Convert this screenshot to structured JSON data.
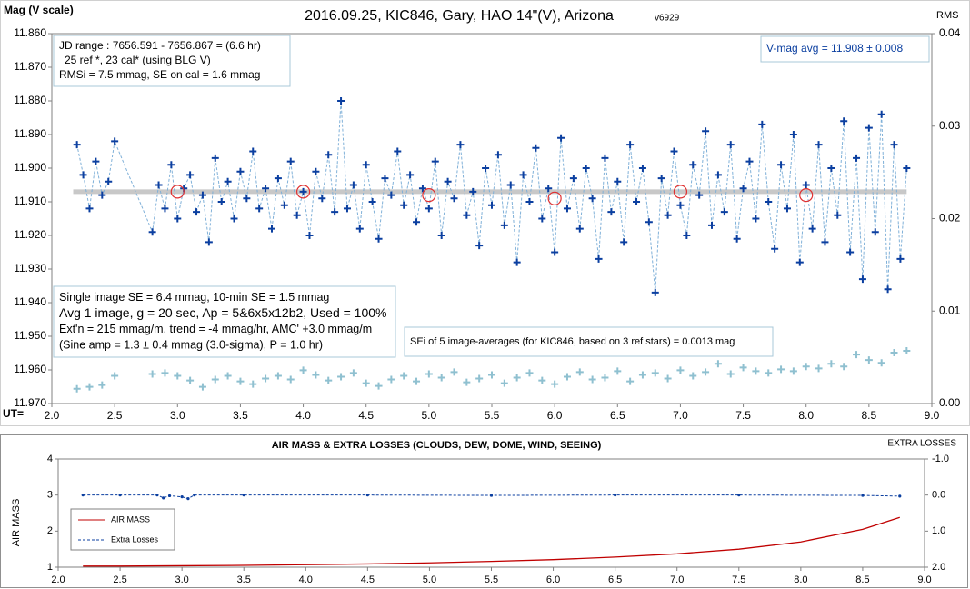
{
  "chart_data": [
    {
      "type": "line",
      "title": "2016.09.25, KIC846, Gary, HAO 14\"(V), Arizona",
      "subtitle": "v6929",
      "ylabel": "Mag (V scale)",
      "y2label": "RMS",
      "xlabel": "UT=",
      "xlim": [
        2,
        9
      ],
      "xticks": [
        {
          "value": 2,
          "label": "2.0"
        },
        {
          "value": 2.5,
          "label": "2.5"
        },
        {
          "value": 3,
          "label": "3.0"
        },
        {
          "value": 3.5,
          "label": "3.5"
        },
        {
          "value": 4,
          "label": "4.0"
        },
        {
          "value": 4.5,
          "label": "4.5"
        },
        {
          "value": 5,
          "label": "5.0"
        },
        {
          "value": 5.5,
          "label": "5.5"
        },
        {
          "value": 6,
          "label": "6.0"
        },
        {
          "value": 6.5,
          "label": "6.5"
        },
        {
          "value": 7,
          "label": "7.0"
        },
        {
          "value": 7.5,
          "label": "7.5"
        },
        {
          "value": 8,
          "label": "8.0"
        },
        {
          "value": 8.5,
          "label": "8.5"
        },
        {
          "value": 9,
          "label": "9.0"
        }
      ],
      "ylim": [
        11.97,
        11.86
      ],
      "yticks": [
        {
          "value": 11.86,
          "label": "11.860"
        },
        {
          "value": 11.87,
          "label": "11.870"
        },
        {
          "value": 11.88,
          "label": "11.880"
        },
        {
          "value": 11.89,
          "label": "11.890"
        },
        {
          "value": 11.9,
          "label": "11.900"
        },
        {
          "value": 11.91,
          "label": "11.910"
        },
        {
          "value": 11.92,
          "label": "11.920"
        },
        {
          "value": 11.93,
          "label": "11.930"
        },
        {
          "value": 11.94,
          "label": "11.940"
        },
        {
          "value": 11.95,
          "label": "11.950"
        },
        {
          "value": 11.96,
          "label": "11.960"
        },
        {
          "value": 11.97,
          "label": "11.970"
        }
      ],
      "y2lim": [
        0,
        0.04
      ],
      "y2ticks": [
        {
          "value": 0,
          "label": "0.00"
        },
        {
          "value": 0.01,
          "label": "0.01"
        },
        {
          "value": 0.02,
          "label": "0.02"
        },
        {
          "value": 0.03,
          "label": "0.03"
        },
        {
          "value": 0.04,
          "label": "0.04"
        }
      ],
      "annotations": [
        [
          "JD range : 7656.591 - 7656.867 = (6.6 hr)",
          "25 ref *, 23 cal* (using BLG V)",
          "RMSi = 7.5 mmag, SE on cal = 1.6 mmag"
        ],
        [
          "V-mag avg = 11.908  ± 0.008"
        ],
        [
          "Single image SE = 6.4 mmag, 10-min SE = 1.5 mmag",
          "Avg 1 image, g = 20 sec, Ap = 5&6x5x12b2, Used = 100%",
          "Ext'n = 215 mmag/m, trend = -4 mmag/hr, AMC' +3.0 mmag/m",
          "(Sine amp = 1.3 ± 0.4 mmag (3.0-sigma), P = 1.0 hr)"
        ],
        [
          "SEi of 5 image-averages (for KIC846, based on 3 ref stars) = 0.0013 mag"
        ]
      ],
      "series": [
        {
          "color": "#c8c8c8",
          "line": "solid",
          "marker": "none",
          "x": [
            2.17,
            8.8
          ],
          "values": [
            11.907,
            11.907
          ]
        },
        {
          "color": "#0b3fa0",
          "line": "dashed",
          "line_color": "#7fb0d8",
          "marker": "plus",
          "x": [
            2.2,
            2.25,
            2.3,
            2.35,
            2.4,
            2.45,
            2.5,
            2.8,
            2.85,
            2.9,
            2.95,
            3.0,
            3.05,
            3.1,
            3.15,
            3.2,
            3.25,
            3.3,
            3.35,
            3.4,
            3.45,
            3.5,
            3.55,
            3.6,
            3.65,
            3.7,
            3.75,
            3.8,
            3.85,
            3.9,
            3.95,
            4.0,
            4.05,
            4.1,
            4.15,
            4.2,
            4.25,
            4.3,
            4.35,
            4.4,
            4.45,
            4.5,
            4.55,
            4.6,
            4.65,
            4.7,
            4.75,
            4.8,
            4.85,
            4.9,
            4.95,
            5.0,
            5.05,
            5.1,
            5.15,
            5.2,
            5.25,
            5.3,
            5.35,
            5.4,
            5.45,
            5.5,
            5.55,
            5.6,
            5.65,
            5.7,
            5.75,
            5.8,
            5.85,
            5.9,
            5.95,
            6.0,
            6.05,
            6.1,
            6.15,
            6.2,
            6.25,
            6.3,
            6.35,
            6.4,
            6.45,
            6.5,
            6.55,
            6.6,
            6.65,
            6.7,
            6.75,
            6.8,
            6.85,
            6.9,
            6.95,
            7.0,
            7.05,
            7.1,
            7.15,
            7.2,
            7.25,
            7.3,
            7.35,
            7.4,
            7.45,
            7.5,
            7.55,
            7.6,
            7.65,
            7.7,
            7.75,
            7.8,
            7.85,
            7.9,
            7.95,
            8.0,
            8.05,
            8.1,
            8.15,
            8.2,
            8.25,
            8.3,
            8.35,
            8.4,
            8.45,
            8.5,
            8.55,
            8.6,
            8.65,
            8.7,
            8.75,
            8.8
          ],
          "values": [
            11.893,
            11.902,
            11.912,
            11.898,
            11.908,
            11.904,
            11.892,
            11.919,
            11.905,
            11.912,
            11.899,
            11.915,
            11.906,
            11.902,
            11.913,
            11.908,
            11.922,
            11.897,
            11.91,
            11.904,
            11.915,
            11.901,
            11.909,
            11.895,
            11.912,
            11.906,
            11.918,
            11.903,
            11.911,
            11.898,
            11.914,
            11.907,
            11.92,
            11.901,
            11.909,
            11.896,
            11.913,
            11.88,
            11.912,
            11.905,
            11.918,
            11.899,
            11.91,
            11.921,
            11.903,
            11.908,
            11.895,
            11.911,
            11.902,
            11.916,
            11.906,
            11.912,
            11.898,
            11.92,
            11.904,
            11.909,
            11.893,
            11.914,
            11.907,
            11.923,
            11.9,
            11.911,
            11.896,
            11.917,
            11.905,
            11.928,
            11.902,
            11.91,
            11.894,
            11.915,
            11.906,
            11.925,
            11.891,
            11.912,
            11.903,
            11.918,
            11.9,
            11.909,
            11.927,
            11.897,
            11.913,
            11.904,
            11.922,
            11.893,
            11.91,
            11.9,
            11.916,
            11.937,
            11.903,
            11.914,
            11.895,
            11.911,
            11.92,
            11.899,
            11.908,
            11.889,
            11.917,
            11.902,
            11.913,
            11.893,
            11.921,
            11.906,
            11.898,
            11.915,
            11.887,
            11.91,
            11.924,
            11.899,
            11.912,
            11.89,
            11.928,
            11.905,
            11.918,
            11.893,
            11.922,
            11.9,
            11.914,
            11.886,
            11.925,
            11.897,
            11.933,
            11.888,
            11.919,
            11.884,
            11.936,
            11.893,
            11.927,
            11.9
          ]
        },
        {
          "color": "#e03030",
          "line": "none",
          "marker": "circle",
          "x": [
            3,
            4,
            5,
            6,
            7,
            8
          ],
          "values": [
            11.907,
            11.907,
            11.908,
            11.909,
            11.907,
            11.908
          ]
        },
        {
          "color": "#8fc0d0",
          "line": "none",
          "marker": "plus",
          "axis": "y2",
          "x": [
            2.2,
            2.3,
            2.4,
            2.5,
            2.8,
            2.9,
            3.0,
            3.1,
            3.2,
            3.3,
            3.4,
            3.5,
            3.6,
            3.7,
            3.8,
            3.9,
            4.0,
            4.1,
            4.2,
            4.3,
            4.4,
            4.5,
            4.6,
            4.7,
            4.8,
            4.9,
            5.0,
            5.1,
            5.2,
            5.3,
            5.4,
            5.5,
            5.6,
            5.7,
            5.8,
            5.9,
            6.0,
            6.1,
            6.2,
            6.3,
            6.4,
            6.5,
            6.6,
            6.7,
            6.8,
            6.9,
            7.0,
            7.1,
            7.2,
            7.3,
            7.4,
            7.5,
            7.6,
            7.7,
            7.8,
            7.9,
            8.0,
            8.1,
            8.2,
            8.3,
            8.4,
            8.5,
            8.6,
            8.7,
            8.8
          ],
          "values": [
            0.0016,
            0.0018,
            0.002,
            0.003,
            0.0032,
            0.0033,
            0.003,
            0.0025,
            0.0018,
            0.0026,
            0.003,
            0.0024,
            0.0021,
            0.0027,
            0.003,
            0.0026,
            0.0036,
            0.0031,
            0.0025,
            0.0029,
            0.0033,
            0.0022,
            0.0019,
            0.0026,
            0.003,
            0.0024,
            0.0032,
            0.0028,
            0.0034,
            0.0023,
            0.0027,
            0.0031,
            0.0022,
            0.0028,
            0.0033,
            0.0025,
            0.0021,
            0.0029,
            0.0034,
            0.0026,
            0.0028,
            0.0035,
            0.0024,
            0.0031,
            0.0033,
            0.0027,
            0.0036,
            0.003,
            0.0034,
            0.0043,
            0.0032,
            0.0039,
            0.0035,
            0.0033,
            0.0037,
            0.0035,
            0.004,
            0.0038,
            0.0043,
            0.004,
            0.0053,
            0.0047,
            0.0044,
            0.0055,
            0.0057
          ]
        }
      ]
    },
    {
      "type": "line",
      "title": "AIR MASS & EXTRA LOSSES (CLOUDS, DEW, DOME, WIND, SEEING)",
      "ylabel": "AIR MASS",
      "y2label": "EXTRA LOSSES",
      "xlim": [
        2,
        9
      ],
      "xticks": [
        {
          "value": 2,
          "label": "2.0"
        },
        {
          "value": 2.5,
          "label": "2.5"
        },
        {
          "value": 3,
          "label": "3.0"
        },
        {
          "value": 3.5,
          "label": "3.5"
        },
        {
          "value": 4,
          "label": "4.0"
        },
        {
          "value": 4.5,
          "label": "4.5"
        },
        {
          "value": 5,
          "label": "5.0"
        },
        {
          "value": 5.5,
          "label": "5.5"
        },
        {
          "value": 6,
          "label": "6.0"
        },
        {
          "value": 6.5,
          "label": "6.5"
        },
        {
          "value": 7,
          "label": "7.0"
        },
        {
          "value": 7.5,
          "label": "7.5"
        },
        {
          "value": 8,
          "label": "8.0"
        },
        {
          "value": 8.5,
          "label": "8.5"
        },
        {
          "value": 9,
          "label": "9.0"
        }
      ],
      "ylim": [
        1,
        4
      ],
      "yticks": [
        1,
        2,
        3,
        4
      ],
      "y2lim": [
        2,
        -1
      ],
      "y2ticks": [
        {
          "value": -1,
          "label": "-1.0"
        },
        {
          "value": 0,
          "label": "0.0"
        },
        {
          "value": 1,
          "label": "1.0"
        },
        {
          "value": 2,
          "label": "2.0"
        }
      ],
      "legend": "lower left",
      "series": [
        {
          "name": "AIR MASS",
          "color": "#c00000",
          "line": "solid",
          "marker": "none",
          "x": [
            2.2,
            2.5,
            3.0,
            3.5,
            4.0,
            4.5,
            5.0,
            5.5,
            6.0,
            6.5,
            7.0,
            7.5,
            8.0,
            8.5,
            8.8
          ],
          "values": [
            1.03,
            1.03,
            1.04,
            1.05,
            1.07,
            1.09,
            1.12,
            1.16,
            1.21,
            1.28,
            1.37,
            1.5,
            1.7,
            2.05,
            2.38
          ]
        },
        {
          "name": "Extra Losses",
          "color": "#0b3fa0",
          "line": "dashed",
          "marker": "dot",
          "axis": "y2",
          "x": [
            2.2,
            2.5,
            2.8,
            2.85,
            2.9,
            3.0,
            3.05,
            3.1,
            3.5,
            4.5,
            5.5,
            6.5,
            7.5,
            8.5,
            8.8
          ],
          "values": [
            0,
            0,
            0,
            0.08,
            0.02,
            0.05,
            0.1,
            0,
            0,
            0,
            0.01,
            0,
            0,
            0.01,
            0.03
          ]
        }
      ]
    }
  ]
}
